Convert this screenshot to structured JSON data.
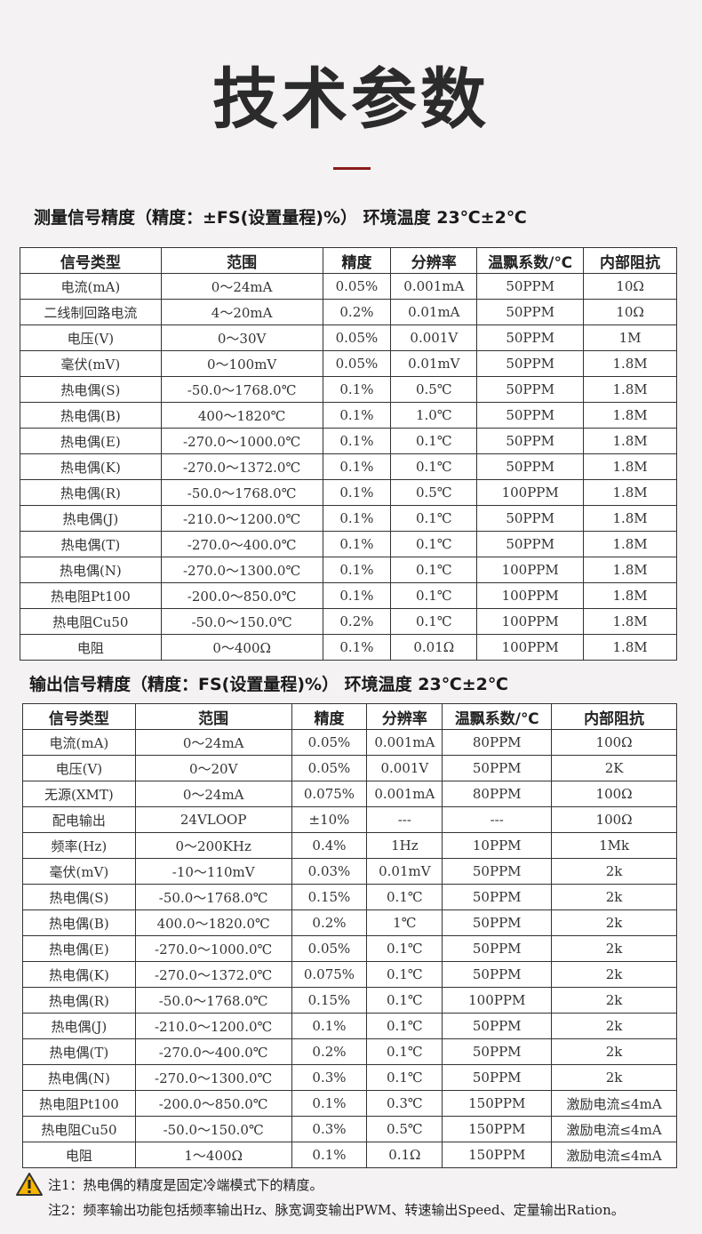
{
  "title": "技术参数",
  "section1": {
    "heading": "测量信号精度（精度：±FS(设置量程)%）  环境温度 23℃±2℃",
    "headers": [
      "信号类型",
      "范围",
      "精度",
      "分辨率",
      "温飘系数/℃",
      "内部阻抗"
    ],
    "rows": [
      [
        "电流(mA)",
        "0～24mA",
        "0.05%",
        "0.001mA",
        "50PPM",
        "10Ω"
      ],
      [
        "二线制回路电流",
        "4～20mA",
        "0.2%",
        "0.01mA",
        "50PPM",
        "10Ω"
      ],
      [
        "电压(V)",
        "0～30V",
        "0.05%",
        "0.001V",
        "50PPM",
        "1M"
      ],
      [
        "毫伏(mV)",
        "0～100mV",
        "0.05%",
        "0.01mV",
        "50PPM",
        "1.8M"
      ],
      [
        "热电偶(S)",
        "-50.0～1768.0℃",
        "0.1%",
        "0.5℃",
        "50PPM",
        "1.8M"
      ],
      [
        "热电偶(B)",
        "400～1820℃",
        "0.1%",
        "1.0℃",
        "50PPM",
        "1.8M"
      ],
      [
        "热电偶(E)",
        "-270.0～1000.0℃",
        "0.1%",
        "0.1℃",
        "50PPM",
        "1.8M"
      ],
      [
        "热电偶(K)",
        "-270.0～1372.0℃",
        "0.1%",
        "0.1℃",
        "50PPM",
        "1.8M"
      ],
      [
        "热电偶(R)",
        "-50.0～1768.0℃",
        "0.1%",
        "0.5℃",
        "100PPM",
        "1.8M"
      ],
      [
        "热电偶(J)",
        "-210.0～1200.0℃",
        "0.1%",
        "0.1℃",
        "50PPM",
        "1.8M"
      ],
      [
        "热电偶(T)",
        "-270.0～400.0℃",
        "0.1%",
        "0.1℃",
        "50PPM",
        "1.8M"
      ],
      [
        "热电偶(N)",
        "-270.0～1300.0℃",
        "0.1%",
        "0.1℃",
        "100PPM",
        "1.8M"
      ],
      [
        "热电阻Pt100",
        "-200.0～850.0℃",
        "0.1%",
        "0.1℃",
        "100PPM",
        "1.8M"
      ],
      [
        "热电阻Cu50",
        "-50.0～150.0℃",
        "0.2%",
        "0.1℃",
        "100PPM",
        "1.8M"
      ],
      [
        "电阻",
        "0～400Ω",
        "0.1%",
        "0.01Ω",
        "100PPM",
        "1.8M"
      ]
    ]
  },
  "section2": {
    "heading": "输出信号精度（精度：FS(设置量程)%）  环境温度 23℃±2℃",
    "headers": [
      "信号类型",
      "范围",
      "精度",
      "分辨率",
      "温飘系数/℃",
      "内部阻抗"
    ],
    "rows": [
      [
        "电流(mA)",
        "0～24mA",
        "0.05%",
        "0.001mA",
        "80PPM",
        "100Ω"
      ],
      [
        "电压(V)",
        "0～20V",
        "0.05%",
        "0.001V",
        "50PPM",
        "2K"
      ],
      [
        "无源(XMT)",
        "0～24mA",
        "0.075%",
        "0.001mA",
        "80PPM",
        "100Ω"
      ],
      [
        "配电输出",
        "24VLOOP",
        "±10%",
        "---",
        "---",
        "100Ω"
      ],
      [
        "频率(Hz)",
        "0～200KHz",
        "0.4%",
        "1Hz",
        "10PPM",
        "1Mk"
      ],
      [
        "毫伏(mV)",
        "-10～110mV",
        "0.03%",
        "0.01mV",
        "50PPM",
        "2k"
      ],
      [
        "热电偶(S)",
        "-50.0～1768.0℃",
        "0.15%",
        "0.1℃",
        "50PPM",
        "2k"
      ],
      [
        "热电偶(B)",
        "400.0～1820.0℃",
        "0.2%",
        "1℃",
        "50PPM",
        "2k"
      ],
      [
        "热电偶(E)",
        "-270.0～1000.0℃",
        "0.05%",
        "0.1℃",
        "50PPM",
        "2k"
      ],
      [
        "热电偶(K)",
        "-270.0～1372.0℃",
        "0.075%",
        "0.1℃",
        "50PPM",
        "2k"
      ],
      [
        "热电偶(R)",
        "-50.0～1768.0℃",
        "0.15%",
        "0.1℃",
        "100PPM",
        "2k"
      ],
      [
        "热电偶(J)",
        "-210.0～1200.0℃",
        "0.1%",
        "0.1℃",
        "50PPM",
        "2k"
      ],
      [
        "热电偶(T)",
        "-270.0～400.0℃",
        "0.2%",
        "0.1℃",
        "50PPM",
        "2k"
      ],
      [
        "热电偶(N)",
        "-270.0～1300.0℃",
        "0.3%",
        "0.1℃",
        "50PPM",
        "2k"
      ],
      [
        "热电阻Pt100",
        "-200.0～850.0℃",
        "0.1%",
        "0.3℃",
        "150PPM",
        "激励电流≤4mA"
      ],
      [
        "热电阻Cu50",
        "-50.0～150.0℃",
        "0.3%",
        "0.5℃",
        "150PPM",
        "激励电流≤4mA"
      ],
      [
        "电阻",
        "1～400Ω",
        "0.1%",
        "0.1Ω",
        "150PPM",
        "激励电流≤4mA"
      ]
    ]
  },
  "notes": [
    "注1：热电偶的精度是固定冷端模式下的精度。",
    "注2：频率输出功能包括频率输出Hz、脉宽调变输出PWM、转速输出Speed、定量输出Ration。"
  ],
  "colors": {
    "background": "#f4f2f2",
    "accent": "#8b1a1a",
    "warning": "#f5b400"
  },
  "icons": {
    "note": "warning-icon"
  }
}
